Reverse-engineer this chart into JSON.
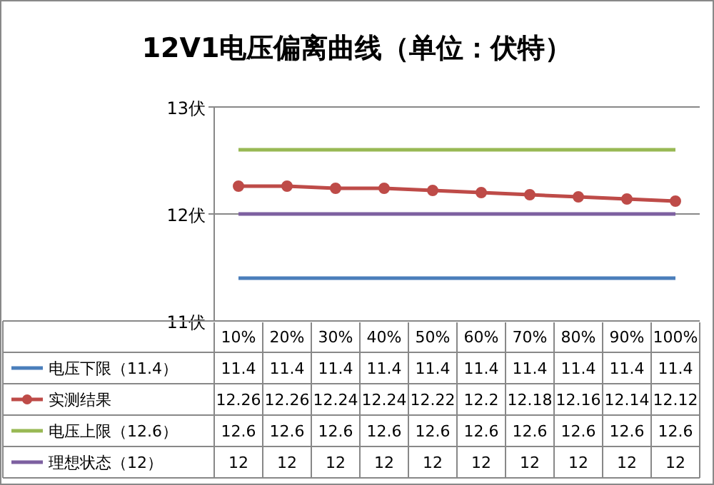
{
  "chart_data": {
    "type": "line",
    "title": "12V1电压偏离曲线（单位：伏特）",
    "categories": [
      "10%",
      "20%",
      "30%",
      "40%",
      "50%",
      "60%",
      "70%",
      "80%",
      "90%",
      "100%"
    ],
    "series": [
      {
        "name": "电压下限（11.4）",
        "color": "#4a7ebb",
        "marker": "none",
        "values": [
          11.4,
          11.4,
          11.4,
          11.4,
          11.4,
          11.4,
          11.4,
          11.4,
          11.4,
          11.4
        ]
      },
      {
        "name": "实测结果",
        "color": "#be4b48",
        "marker": "circle",
        "values": [
          12.26,
          12.26,
          12.24,
          12.24,
          12.22,
          12.2,
          12.18,
          12.16,
          12.14,
          12.12
        ]
      },
      {
        "name": "电压上限（12.6）",
        "color": "#98b954",
        "marker": "none",
        "values": [
          12.6,
          12.6,
          12.6,
          12.6,
          12.6,
          12.6,
          12.6,
          12.6,
          12.6,
          12.6
        ]
      },
      {
        "name": "理想状态（12）",
        "color": "#7d60a0",
        "marker": "none",
        "values": [
          12,
          12,
          12,
          12,
          12,
          12,
          12,
          12,
          12,
          12
        ]
      }
    ],
    "ylim": [
      11,
      13
    ],
    "yticks": [
      {
        "value": 11,
        "label": "11伏"
      },
      {
        "value": 12,
        "label": "12伏"
      },
      {
        "value": 13,
        "label": "13伏"
      }
    ],
    "grid": "y",
    "legend": "bottom",
    "data_labels": true
  }
}
